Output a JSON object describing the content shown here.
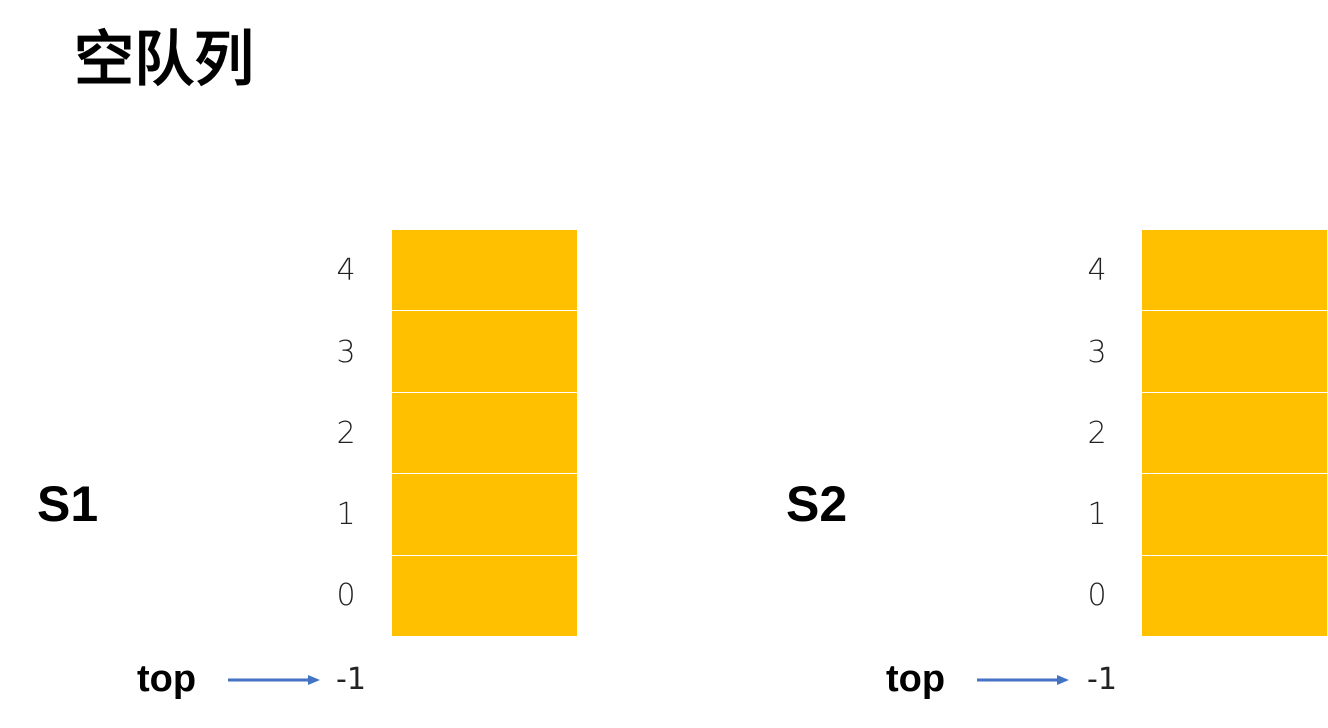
{
  "title": "空队列",
  "colors": {
    "cell_fill": "#FFC000",
    "arrow": "#4472C4"
  },
  "stacks": [
    {
      "name": "S1",
      "indices": [
        "4",
        "3",
        "2",
        "1",
        "0"
      ],
      "pointer_label": "top",
      "pointer_value": "-1"
    },
    {
      "name": "S2",
      "indices": [
        "4",
        "3",
        "2",
        "1",
        "0"
      ],
      "pointer_label": "top",
      "pointer_value": "-1"
    }
  ]
}
